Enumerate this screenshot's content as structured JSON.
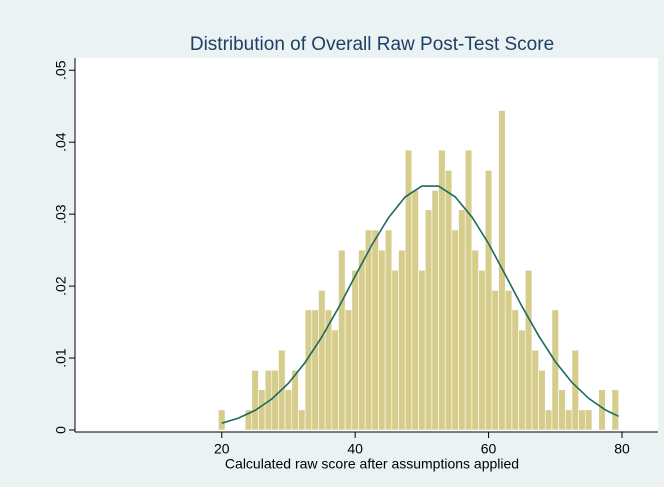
{
  "chart_data": {
    "type": "histogram",
    "title": "Distribution of Overall Raw Post-Test Score",
    "x_label": "Calculated raw score after assumptions applied",
    "bins": [
      19.5,
      20.5,
      21.5,
      22.5,
      23.5,
      24.5,
      25.5,
      26.5,
      27.5,
      28.5,
      29.5,
      30.5,
      31.5,
      32.5,
      33.5,
      34.5,
      35.5,
      36.5,
      37.5,
      38.5,
      39.5,
      40.5,
      41.5,
      42.5,
      43.5,
      44.5,
      45.5,
      46.5,
      47.5,
      48.5,
      49.5,
      50.5,
      51.5,
      52.5,
      53.5,
      54.5,
      55.5,
      56.5,
      57.5,
      58.5,
      59.5,
      60.5,
      61.5,
      62.5,
      63.5,
      64.5,
      65.5,
      66.5,
      67.5,
      68.5,
      69.5,
      70.5,
      71.5,
      72.5,
      73.5,
      74.5,
      75.5,
      76.5,
      77.5,
      78.5,
      79.5
    ],
    "values": [
      0.0028,
      0,
      0,
      0,
      0.0028,
      0.0083,
      0.0056,
      0.0083,
      0.0083,
      0.0111,
      0.0056,
      0.0083,
      0.0028,
      0.0167,
      0.0167,
      0.0194,
      0.0167,
      0.0139,
      0.025,
      0.0167,
      0.0222,
      0.025,
      0.0278,
      0.0278,
      0.025,
      0.0278,
      0.0222,
      0.025,
      0.0389,
      0.0333,
      0.0222,
      0.0306,
      0.0333,
      0.0389,
      0.0361,
      0.0278,
      0.0306,
      0.0389,
      0.025,
      0.0222,
      0.0361,
      0.0194,
      0.0444,
      0.0194,
      0.0167,
      0.0139,
      0.0222,
      0.0111,
      0.0083,
      0.0028,
      0.0167,
      0.0056,
      0.0028,
      0.0111,
      0.0028,
      0.0028,
      0,
      0.0056,
      0,
      0.0056
    ],
    "color": "#d6cd8c",
    "density_curve": {
      "color": "#1f6b5c",
      "x": [
        20,
        22.5,
        25,
        27.5,
        30,
        32.5,
        35,
        37.5,
        40,
        42.5,
        45,
        47.5,
        50,
        52.5,
        55,
        57.5,
        60,
        62.5,
        65,
        67.5,
        70,
        72.5,
        75,
        77.5,
        79.5
      ],
      "values": [
        0.00095,
        0.00165,
        0.00272,
        0.00431,
        0.0065,
        0.00938,
        0.01293,
        0.017,
        0.0214,
        0.0257,
        0.0295,
        0.0324,
        0.0339,
        0.0339,
        0.0324,
        0.0296,
        0.0259,
        0.0216,
        0.0172,
        0.0131,
        0.0095,
        0.0066,
        0.0044,
        0.0028,
        0.0019
      ]
    },
    "xlim": [
      -2,
      85.4
    ],
    "xticks": [
      20,
      40,
      60,
      80
    ],
    "ylim": [
      0,
      0.0517
    ],
    "yticks": [
      0,
      {
        "value": 0.01,
        "label": ".01"
      },
      {
        "value": 0.02,
        "label": ".02"
      },
      {
        "value": 0.03,
        "label": ".03"
      },
      {
        "value": 0.04,
        "label": ".04"
      },
      {
        "value": 0.05,
        "label": ".05"
      }
    ]
  }
}
